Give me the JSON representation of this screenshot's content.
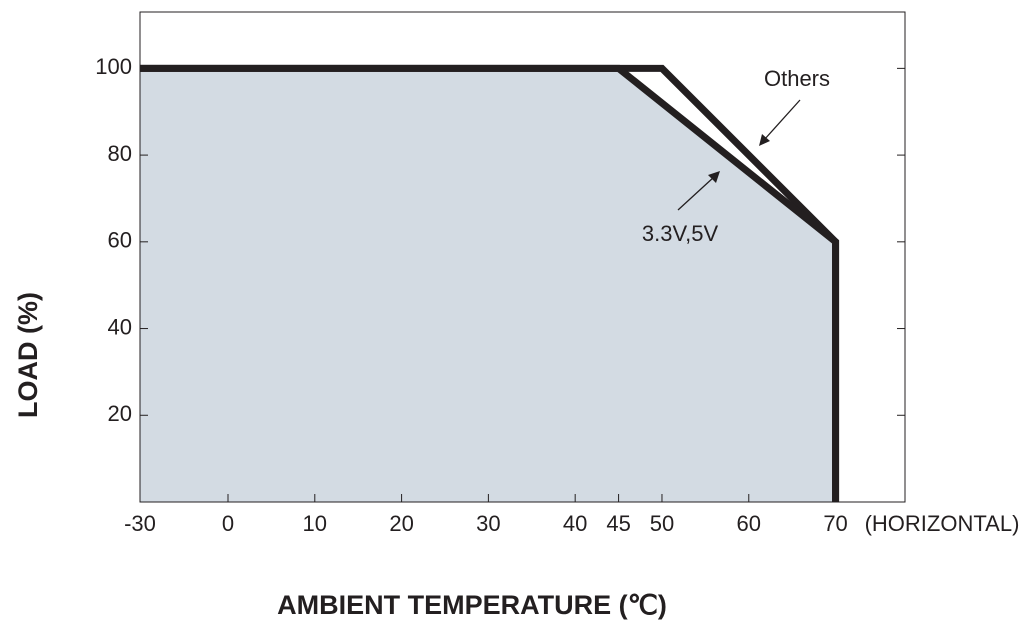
{
  "chart_data": {
    "type": "line",
    "x_label": "AMBIENT TEMPERATURE (℃)",
    "y_label": "LOAD (%)",
    "x_note": "(HORIZONTAL)",
    "xlim": [
      -30,
      78
    ],
    "ylim": [
      0,
      113
    ],
    "xticks": [
      -30,
      0,
      10,
      20,
      30,
      40,
      45,
      50,
      60,
      70
    ],
    "yticks": [
      20,
      40,
      60,
      80,
      100
    ],
    "area_color": "#d3dbe3",
    "series": [
      {
        "name": "Others",
        "color": "#231f20",
        "x": [
          -30,
          50,
          70,
          70
        ],
        "values": [
          100,
          100,
          60,
          0
        ]
      },
      {
        "name": "3.3V,5V",
        "color": "#231f20",
        "x": [
          -30,
          45,
          70,
          70
        ],
        "values": [
          100,
          100,
          60,
          0
        ]
      }
    ]
  }
}
